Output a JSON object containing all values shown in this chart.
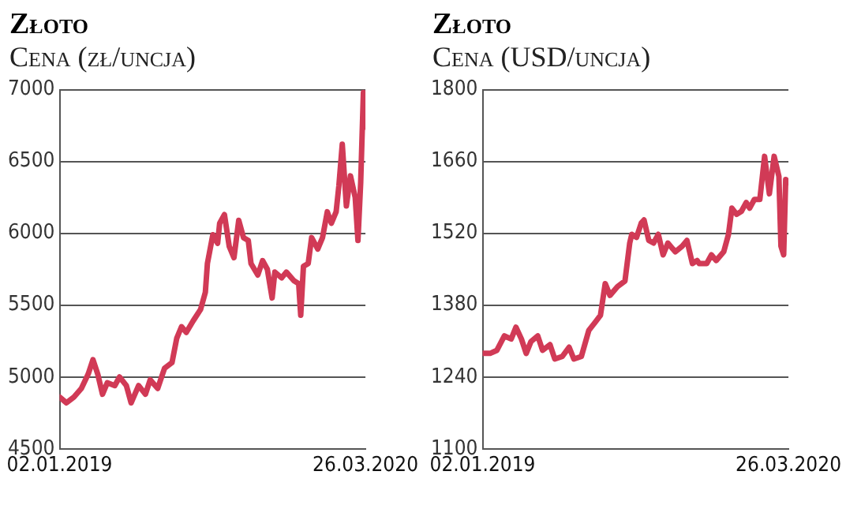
{
  "chart_data": [
    {
      "type": "line",
      "title": "Złoto",
      "subtitle": "Cena (zł/uncja)",
      "grid": "y",
      "marker": "none",
      "xlim": [
        "2019-01-02",
        "2020-03-26"
      ],
      "xticks": [
        {
          "value": "2019-01-02",
          "label": "02.01.2019"
        },
        {
          "value": "2020-03-26",
          "label": "26.03.2020"
        }
      ],
      "ylim": [
        4500,
        7000
      ],
      "yticks": [
        4500,
        5000,
        5500,
        6000,
        6500,
        7000
      ],
      "series": [
        {
          "color": "#d13a56",
          "x": [
            "2019-01-02",
            "2019-01-12",
            "2019-01-23",
            "2019-02-03",
            "2019-02-13",
            "2019-02-20",
            "2019-02-27",
            "2019-03-06",
            "2019-03-13",
            "2019-03-24",
            "2019-03-31",
            "2019-04-10",
            "2019-04-17",
            "2019-04-28",
            "2019-05-08",
            "2019-05-15",
            "2019-05-26",
            "2019-06-05",
            "2019-06-16",
            "2019-06-23",
            "2019-06-30",
            "2019-07-07",
            "2019-07-17",
            "2019-07-28",
            "2019-08-04",
            "2019-08-07",
            "2019-08-15",
            "2019-08-22",
            "2019-08-25",
            "2019-09-01",
            "2019-09-08",
            "2019-09-15",
            "2019-09-22",
            "2019-09-29",
            "2019-10-06",
            "2019-10-10",
            "2019-10-20",
            "2019-10-27",
            "2019-11-03",
            "2019-11-10",
            "2019-11-14",
            "2019-11-24",
            "2019-12-01",
            "2019-12-12",
            "2019-12-19",
            "2019-12-22",
            "2019-12-26",
            "2020-01-02",
            "2020-01-07",
            "2020-01-16",
            "2020-01-23",
            "2020-01-30",
            "2020-02-05",
            "2020-02-12",
            "2020-02-16",
            "2020-02-21",
            "2020-02-27",
            "2020-03-04",
            "2020-03-11",
            "2020-03-15",
            "2020-03-19",
            "2020-03-23",
            "2020-03-26"
          ],
          "values": [
            4860,
            4820,
            4860,
            4920,
            5020,
            5120,
            5020,
            4880,
            4960,
            4940,
            5000,
            4940,
            4820,
            4940,
            4880,
            4980,
            4920,
            5060,
            5100,
            5270,
            5350,
            5310,
            5390,
            5470,
            5590,
            5790,
            5990,
            5930,
            6070,
            6130,
            5910,
            5830,
            6090,
            5970,
            5950,
            5790,
            5710,
            5810,
            5750,
            5550,
            5730,
            5690,
            5730,
            5670,
            5650,
            5430,
            5770,
            5790,
            5970,
            5890,
            5970,
            6150,
            6070,
            6150,
            6330,
            6620,
            6190,
            6400,
            6250,
            5950,
            6350,
            6980,
            6740
          ]
        }
      ]
    },
    {
      "type": "line",
      "title": "Złoto",
      "subtitle": "Cena (USD/uncja)",
      "grid": "y",
      "marker": "none",
      "xlim": [
        "2019-01-02",
        "2020-03-26"
      ],
      "xticks": [
        {
          "value": "2019-01-02",
          "label": "02.01.2019"
        },
        {
          "value": "2020-03-26",
          "label": "26.03.2020"
        }
      ],
      "ylim": [
        1100,
        1800
      ],
      "yticks": [
        1100,
        1240,
        1380,
        1520,
        1660,
        1800
      ],
      "series": [
        {
          "color": "#d13a56",
          "x": [
            "2019-01-02",
            "2019-01-13",
            "2019-01-23",
            "2019-02-03",
            "2019-02-13",
            "2019-02-20",
            "2019-02-28",
            "2019-03-07",
            "2019-03-14",
            "2019-03-24",
            "2019-03-31",
            "2019-04-11",
            "2019-04-18",
            "2019-04-29",
            "2019-05-09",
            "2019-05-16",
            "2019-05-27",
            "2019-06-07",
            "2019-06-17",
            "2019-06-24",
            "2019-07-01",
            "2019-07-08",
            "2019-07-19",
            "2019-07-30",
            "2019-08-06",
            "2019-08-09",
            "2019-08-16",
            "2019-08-23",
            "2019-08-27",
            "2019-09-03",
            "2019-09-10",
            "2019-09-17",
            "2019-09-24",
            "2019-10-01",
            "2019-10-08",
            "2019-10-12",
            "2019-10-22",
            "2019-10-29",
            "2019-11-06",
            "2019-11-13",
            "2019-11-16",
            "2019-11-27",
            "2019-12-04",
            "2019-12-11",
            "2019-12-22",
            "2019-12-29",
            "2020-01-03",
            "2020-01-10",
            "2020-01-17",
            "2020-01-24",
            "2020-01-29",
            "2020-02-05",
            "2020-02-13",
            "2020-02-20",
            "2020-02-27",
            "2020-03-05",
            "2020-03-12",
            "2020-03-15",
            "2020-03-19",
            "2020-03-22",
            "2020-03-26"
          ],
          "values": [
            1286,
            1286,
            1292,
            1320,
            1314,
            1337,
            1314,
            1286,
            1309,
            1320,
            1292,
            1303,
            1275,
            1280,
            1298,
            1275,
            1280,
            1331,
            1348,
            1360,
            1422,
            1399,
            1416,
            1427,
            1501,
            1518,
            1512,
            1540,
            1546,
            1506,
            1501,
            1518,
            1478,
            1501,
            1490,
            1484,
            1495,
            1506,
            1461,
            1467,
            1461,
            1461,
            1478,
            1467,
            1484,
            1518,
            1569,
            1557,
            1563,
            1580,
            1569,
            1586,
            1586,
            1670,
            1597,
            1670,
            1631,
            1495,
            1478,
            1625,
            1619
          ]
        }
      ]
    }
  ]
}
